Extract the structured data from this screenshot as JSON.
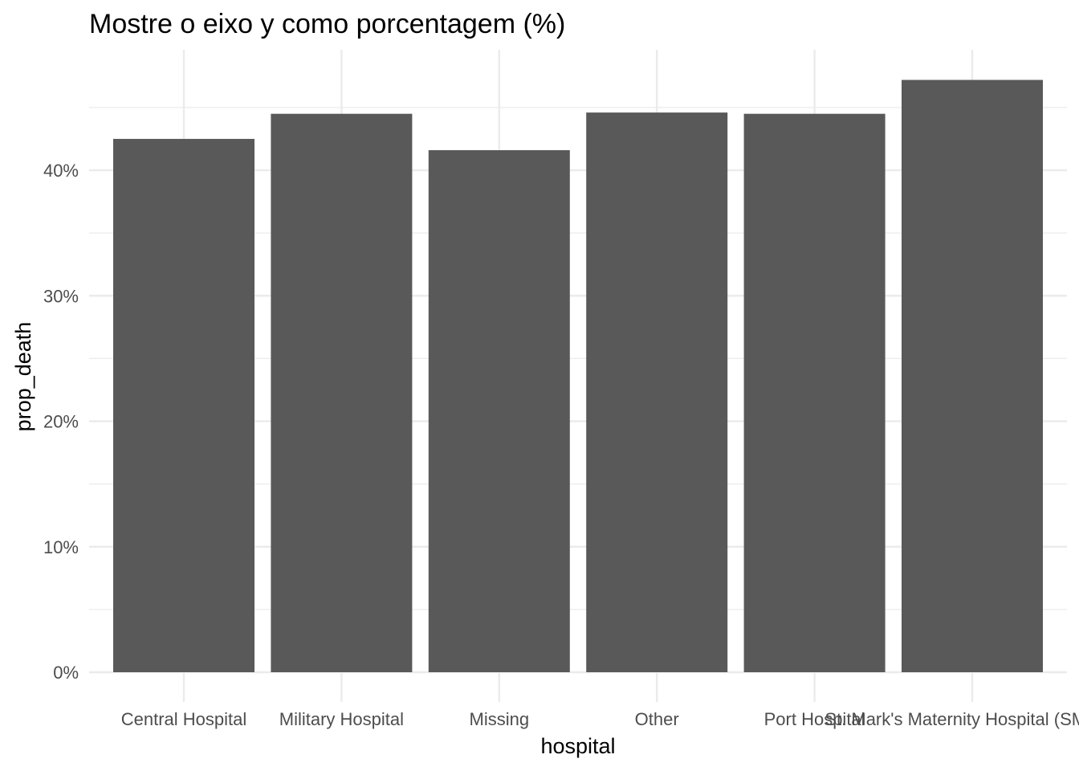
{
  "chart_data": {
    "type": "bar",
    "title": "Mostre o eixo y como porcentagem (%)",
    "xlabel": "hospital",
    "ylabel": "prop_death",
    "categories": [
      "Central Hospital",
      "Military Hospital",
      "Missing",
      "Other",
      "Port Hospital",
      "St. Mark's Maternity Hospital (SMMH)"
    ],
    "values": [
      0.425,
      0.445,
      0.416,
      0.446,
      0.445,
      0.472
    ],
    "ylim": [
      0,
      0.495
    ],
    "yticks": [
      0,
      0.1,
      0.2,
      0.3,
      0.4
    ],
    "ytick_labels": [
      "0%",
      "10%",
      "20%",
      "30%",
      "40%"
    ],
    "grid": true,
    "bar_color": "#595959",
    "grid_color": "#ebebeb"
  }
}
